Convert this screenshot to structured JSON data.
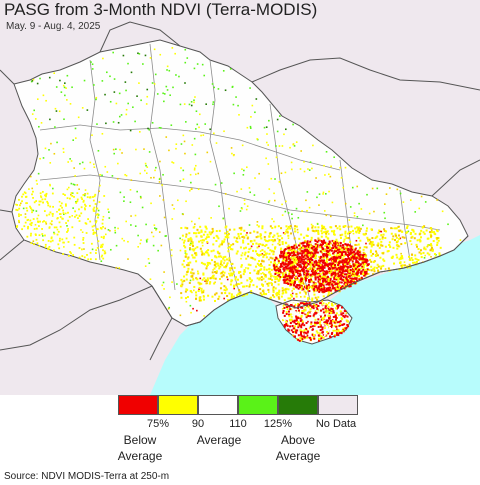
{
  "title": "PASG from 3-Month NDVI (Terra-MODIS)",
  "subtitle": "May. 9 - Aug. 4, 2025",
  "colors": {
    "land": "#fefefe",
    "outside": "#efe8ee",
    "sea": "#b7fcfc",
    "border": "#555555",
    "internal_border": "#8c8c8c"
  },
  "legend": {
    "swatches": [
      {
        "color": "#f00000",
        "meaning": "below 75%"
      },
      {
        "color": "#ffff00",
        "meaning": "75-90%"
      },
      {
        "color": "#ffffff",
        "meaning": "90-110%"
      },
      {
        "color": "#5af218",
        "meaning": "110-125%"
      },
      {
        "color": "#267b08",
        "meaning": "above 125%"
      },
      {
        "color": "#efe8ee",
        "meaning": "No Data"
      }
    ],
    "ticks": [
      "75%",
      "90",
      "110",
      "125%"
    ],
    "no_data_label": "No Data",
    "below_label": "Below\nAverage",
    "average_label": "Average",
    "above_label": "Above\nAverage"
  },
  "source": "Source: NDVI MODIS-Terra at 250-m"
}
